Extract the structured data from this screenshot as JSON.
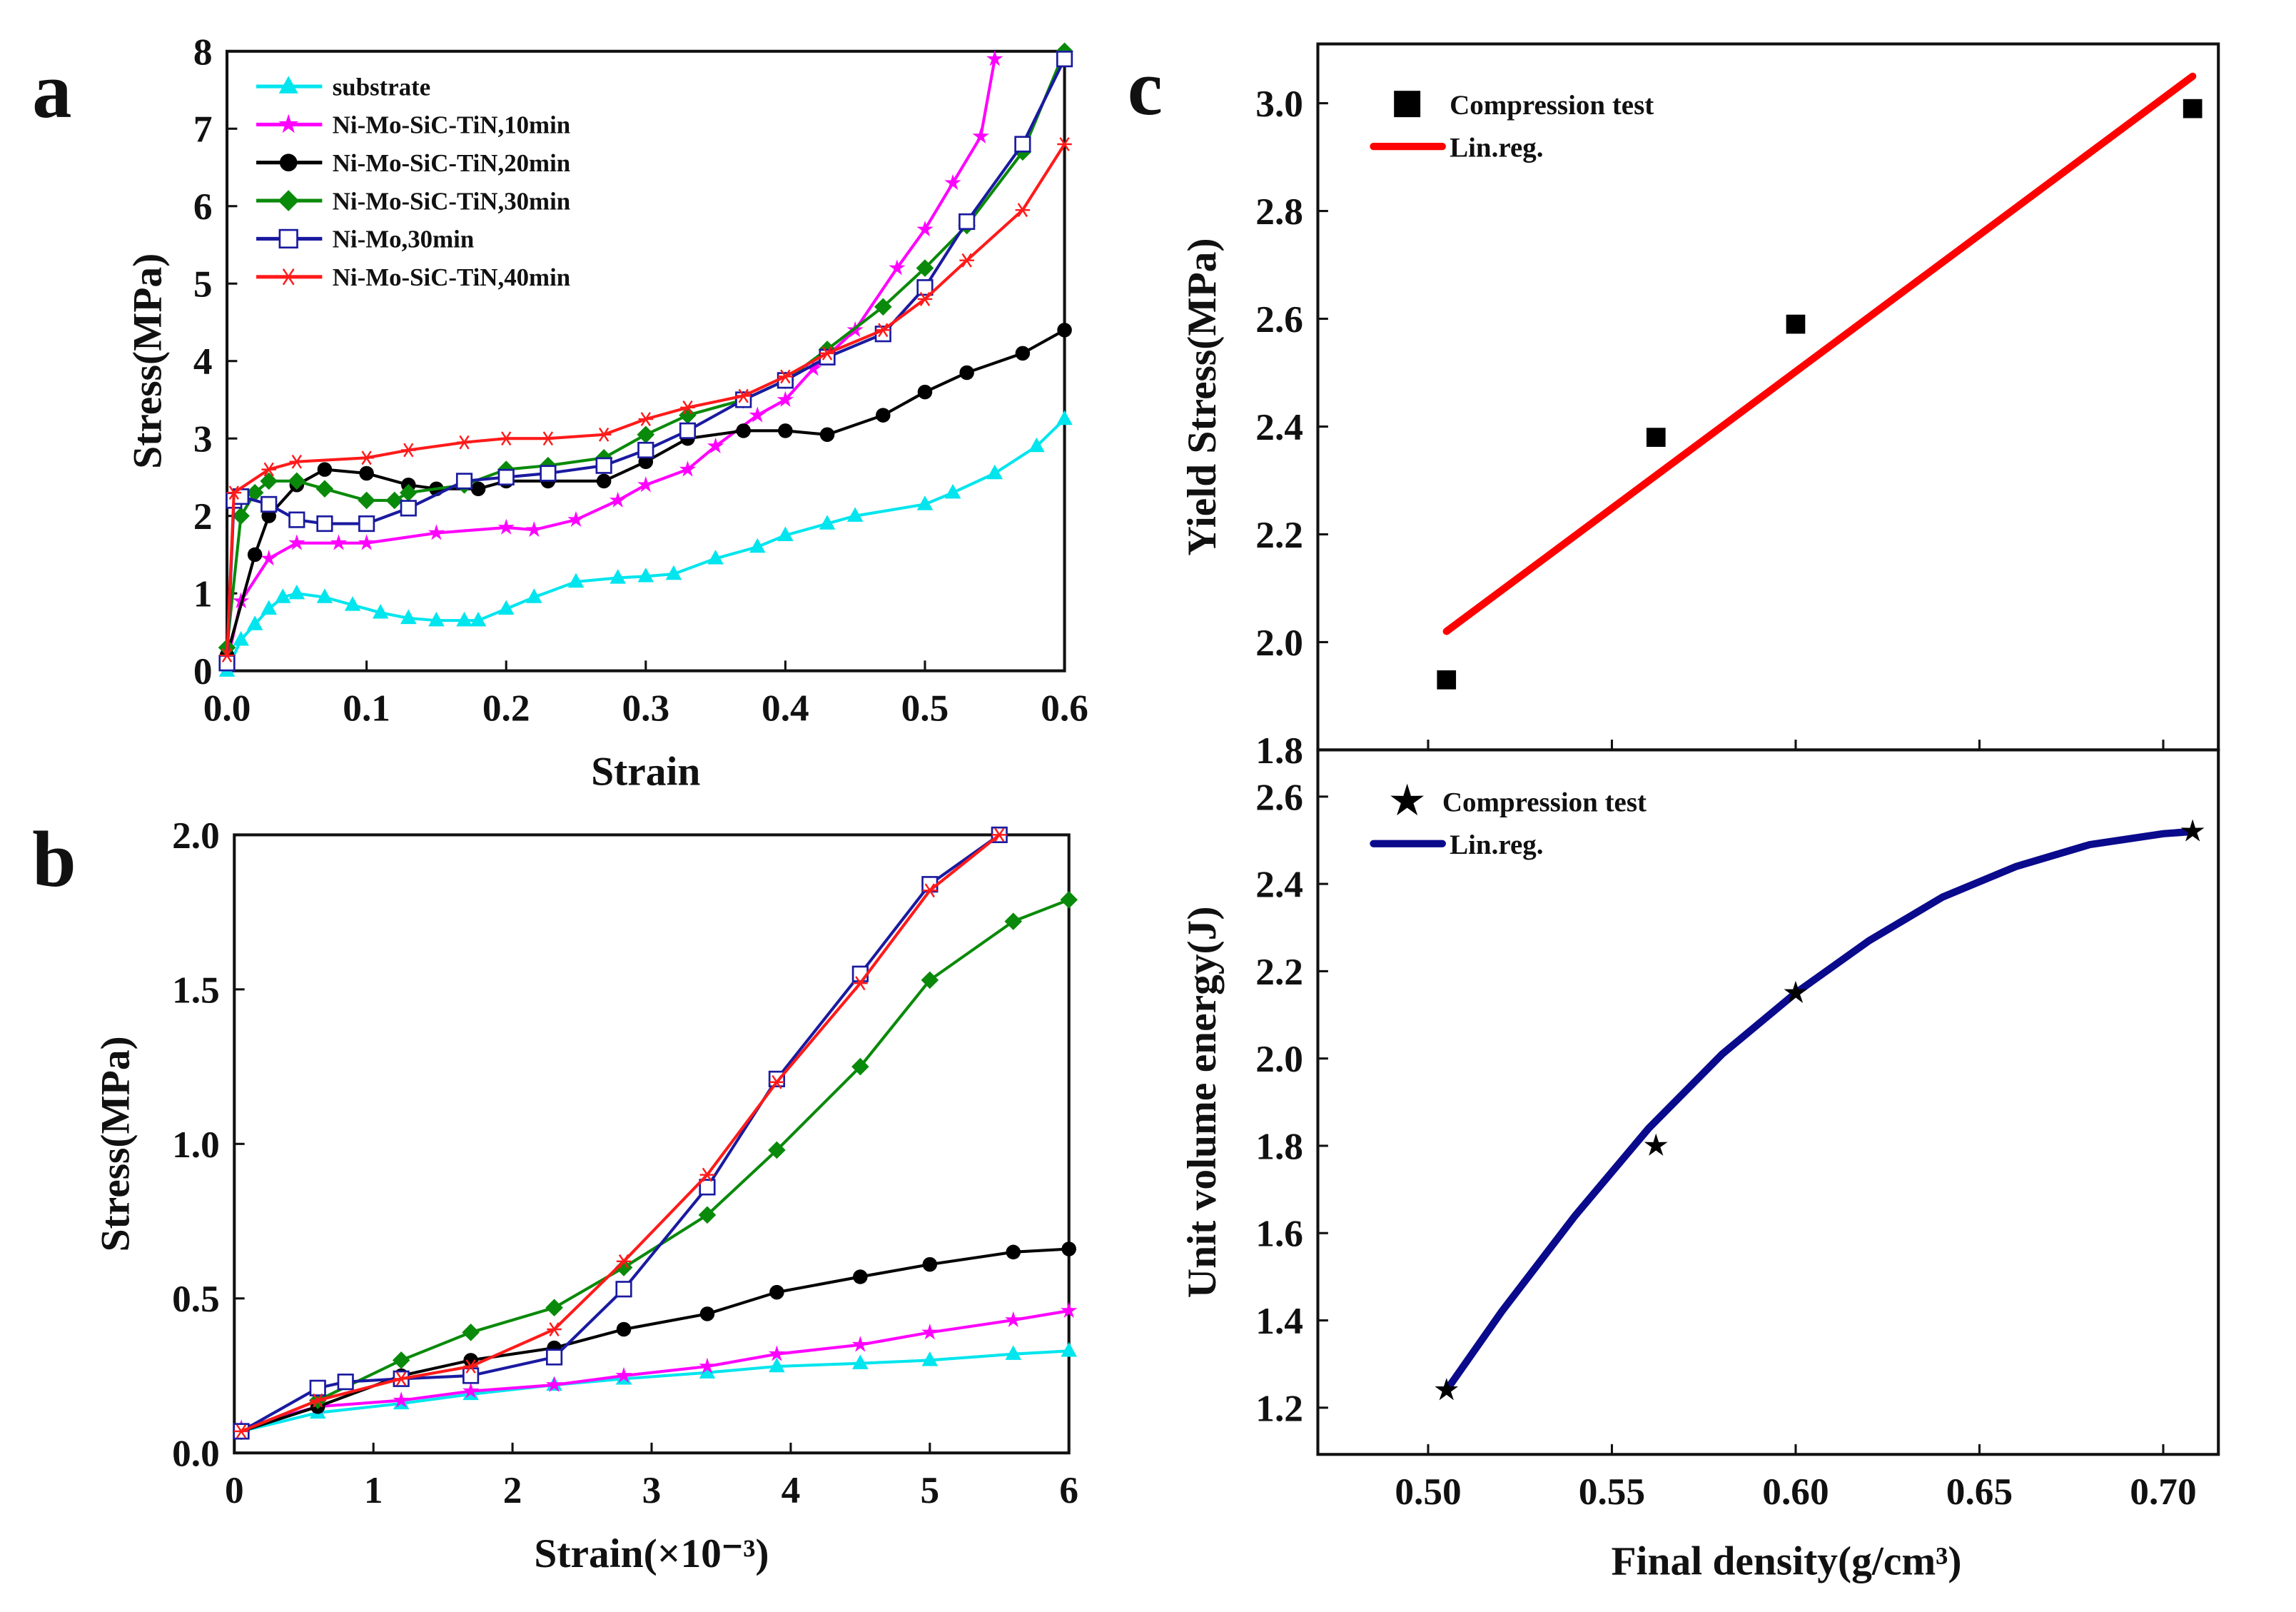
{
  "colors": {
    "substrate": "#00e5ee",
    "t10": "#ff00ff",
    "t20": "#000000",
    "t30": "#0a8a0a",
    "nimo": "#1a1aa0",
    "t40": "#ff1a1a",
    "fit_yield": "#ff0000",
    "fit_energy": "#0a0a8c"
  },
  "chart_data": [
    {
      "id": "a",
      "panel_label": "a",
      "type": "line",
      "xlabel": "Strain",
      "ylabel": "Stress(MPa)",
      "xlim": [
        0,
        0.6
      ],
      "ylim": [
        0,
        8
      ],
      "xticks": [
        0,
        0.1,
        0.2,
        0.3,
        0.4,
        0.5,
        0.6
      ],
      "xtick_labels": [
        "0.0",
        "0.1",
        "0.2",
        "0.3",
        "0.4",
        "0.5",
        "0.6"
      ],
      "yticks": [
        0,
        1,
        2,
        3,
        4,
        5,
        6,
        7,
        8
      ],
      "ytick_labels": [
        "0",
        "1",
        "2",
        "3",
        "4",
        "5",
        "6",
        "7",
        "8"
      ],
      "legend_position": "top-left",
      "series": [
        {
          "name": "substrate",
          "marker": "triangle",
          "color_key": "substrate",
          "x": [
            0,
            0.01,
            0.02,
            0.03,
            0.04,
            0.05,
            0.07,
            0.09,
            0.11,
            0.13,
            0.15,
            0.17,
            0.18,
            0.2,
            0.22,
            0.25,
            0.28,
            0.3,
            0.32,
            0.35,
            0.38,
            0.4,
            0.43,
            0.45,
            0.5,
            0.52,
            0.55,
            0.58,
            0.6
          ],
          "y": [
            0,
            0.4,
            0.6,
            0.8,
            0.95,
            1.0,
            0.95,
            0.85,
            0.75,
            0.68,
            0.65,
            0.65,
            0.65,
            0.8,
            0.95,
            1.15,
            1.2,
            1.22,
            1.25,
            1.45,
            1.6,
            1.75,
            1.9,
            2.0,
            2.15,
            2.3,
            2.55,
            2.9,
            3.25
          ]
        },
        {
          "name": "Ni-Mo-SiC-TiN,10min",
          "marker": "star",
          "color_key": "t10",
          "x": [
            0,
            0.01,
            0.03,
            0.05,
            0.08,
            0.1,
            0.15,
            0.2,
            0.22,
            0.25,
            0.28,
            0.3,
            0.33,
            0.35,
            0.38,
            0.4,
            0.42,
            0.45,
            0.48,
            0.5,
            0.52,
            0.54,
            0.55
          ],
          "y": [
            0.1,
            0.9,
            1.45,
            1.65,
            1.65,
            1.65,
            1.78,
            1.85,
            1.82,
            1.95,
            2.2,
            2.4,
            2.6,
            2.9,
            3.3,
            3.5,
            3.9,
            4.4,
            5.2,
            5.7,
            6.3,
            6.9,
            7.9
          ]
        },
        {
          "name": "Ni-Mo-SiC-TiN,20min",
          "marker": "circle",
          "color_key": "t20",
          "x": [
            0,
            0.02,
            0.03,
            0.05,
            0.07,
            0.1,
            0.13,
            0.15,
            0.18,
            0.2,
            0.23,
            0.27,
            0.3,
            0.33,
            0.37,
            0.4,
            0.43,
            0.47,
            0.5,
            0.53,
            0.57,
            0.6
          ],
          "y": [
            0.2,
            1.5,
            2.0,
            2.4,
            2.6,
            2.55,
            2.4,
            2.35,
            2.35,
            2.45,
            2.45,
            2.45,
            2.7,
            3.0,
            3.1,
            3.1,
            3.05,
            3.3,
            3.6,
            3.85,
            4.1,
            4.4
          ]
        },
        {
          "name": "Ni-Mo-SiC-TiN,30min",
          "marker": "diamond",
          "color_key": "t30",
          "x": [
            0,
            0.01,
            0.02,
            0.03,
            0.05,
            0.07,
            0.1,
            0.12,
            0.13,
            0.17,
            0.2,
            0.23,
            0.27,
            0.3,
            0.33,
            0.37,
            0.4,
            0.43,
            0.47,
            0.5,
            0.53,
            0.57,
            0.6
          ],
          "y": [
            0.3,
            2.0,
            2.3,
            2.45,
            2.45,
            2.35,
            2.2,
            2.2,
            2.3,
            2.4,
            2.6,
            2.65,
            2.75,
            3.05,
            3.3,
            3.5,
            3.75,
            4.15,
            4.7,
            5.2,
            5.75,
            6.7,
            8.0
          ]
        },
        {
          "name": "Ni-Mo,30min",
          "marker": "square-open",
          "color_key": "nimo",
          "x": [
            0,
            0.005,
            0.01,
            0.03,
            0.05,
            0.07,
            0.1,
            0.13,
            0.17,
            0.2,
            0.23,
            0.27,
            0.3,
            0.33,
            0.37,
            0.4,
            0.43,
            0.47,
            0.5,
            0.53,
            0.57,
            0.6
          ],
          "y": [
            0.1,
            2.2,
            2.25,
            2.15,
            1.95,
            1.9,
            1.9,
            2.1,
            2.45,
            2.5,
            2.55,
            2.65,
            2.85,
            3.1,
            3.5,
            3.75,
            4.05,
            4.35,
            4.95,
            5.8,
            6.8,
            7.9
          ]
        },
        {
          "name": "Ni-Mo-SiC-TiN,40min",
          "marker": "asterisk",
          "color_key": "t40",
          "x": [
            0,
            0.005,
            0.03,
            0.05,
            0.1,
            0.13,
            0.17,
            0.2,
            0.23,
            0.27,
            0.3,
            0.33,
            0.37,
            0.4,
            0.43,
            0.47,
            0.5,
            0.53,
            0.57,
            0.6
          ],
          "y": [
            0.2,
            2.3,
            2.6,
            2.7,
            2.75,
            2.85,
            2.95,
            3.0,
            3.0,
            3.05,
            3.25,
            3.4,
            3.55,
            3.8,
            4.1,
            4.4,
            4.8,
            5.3,
            5.95,
            6.8
          ]
        }
      ]
    },
    {
      "id": "b",
      "panel_label": "b",
      "type": "line",
      "xlabel": "Strain(×10⁻³)",
      "ylabel": "Stress(MPa)",
      "xlim": [
        0,
        6
      ],
      "ylim": [
        0,
        2
      ],
      "xticks": [
        0,
        1,
        2,
        3,
        4,
        5,
        6
      ],
      "xtick_labels": [
        "0",
        "1",
        "2",
        "3",
        "4",
        "5",
        "6"
      ],
      "yticks": [
        0,
        0.5,
        1,
        1.5,
        2
      ],
      "ytick_labels": [
        "0.0",
        "0.5",
        "1.0",
        "1.5",
        "2.0"
      ],
      "series": [
        {
          "name": "substrate",
          "marker": "triangle",
          "color_key": "substrate",
          "x": [
            0.05,
            0.6,
            1.2,
            1.7,
            2.3,
            2.8,
            3.4,
            3.9,
            4.5,
            5.0,
            5.6,
            6.0
          ],
          "y": [
            0.07,
            0.13,
            0.16,
            0.19,
            0.22,
            0.24,
            0.26,
            0.28,
            0.29,
            0.3,
            0.32,
            0.33
          ]
        },
        {
          "name": "Ni-Mo-SiC-TiN,10min",
          "marker": "star",
          "color_key": "t10",
          "x": [
            0.05,
            0.6,
            1.2,
            1.7,
            2.3,
            2.8,
            3.4,
            3.9,
            4.5,
            5.0,
            5.6,
            6.0
          ],
          "y": [
            0.08,
            0.15,
            0.17,
            0.2,
            0.22,
            0.25,
            0.28,
            0.32,
            0.35,
            0.39,
            0.43,
            0.46
          ]
        },
        {
          "name": "Ni-Mo-SiC-TiN,20min",
          "marker": "circle",
          "color_key": "t20",
          "x": [
            0.05,
            0.6,
            1.2,
            1.7,
            2.3,
            2.8,
            3.4,
            3.9,
            4.5,
            5.0,
            5.6,
            6.0
          ],
          "y": [
            0.07,
            0.15,
            0.25,
            0.3,
            0.34,
            0.4,
            0.45,
            0.52,
            0.57,
            0.61,
            0.65,
            0.66
          ]
        },
        {
          "name": "Ni-Mo-SiC-TiN,30min",
          "marker": "diamond",
          "color_key": "t30",
          "x": [
            0.05,
            0.6,
            1.2,
            1.7,
            2.3,
            2.8,
            3.4,
            3.9,
            4.5,
            5.0,
            5.6,
            6.0
          ],
          "y": [
            0.07,
            0.17,
            0.3,
            0.39,
            0.47,
            0.6,
            0.77,
            0.98,
            1.25,
            1.53,
            1.72,
            1.79
          ]
        },
        {
          "name": "Ni-Mo,30min",
          "marker": "square-open",
          "color_key": "nimo",
          "x": [
            0.05,
            0.6,
            0.8,
            1.2,
            1.7,
            2.3,
            2.8,
            3.4,
            3.9,
            4.5,
            5.0,
            5.5
          ],
          "y": [
            0.07,
            0.21,
            0.23,
            0.24,
            0.25,
            0.31,
            0.53,
            0.86,
            1.21,
            1.55,
            1.84,
            2.0
          ]
        },
        {
          "name": "Ni-Mo-SiC-TiN,40min",
          "marker": "asterisk",
          "color_key": "t40",
          "x": [
            0.05,
            0.6,
            1.2,
            1.7,
            2.3,
            2.8,
            3.4,
            3.9,
            4.5,
            5.0,
            5.5
          ],
          "y": [
            0.07,
            0.17,
            0.24,
            0.28,
            0.4,
            0.62,
            0.9,
            1.2,
            1.52,
            1.82,
            2.0
          ]
        }
      ]
    },
    {
      "id": "c_top",
      "panel_label": "c",
      "type": "scatter",
      "xlabel": "",
      "ylabel": "Yield Stress(MPa)",
      "xlim": [
        0.47,
        0.715
      ],
      "ylim": [
        1.8,
        3.11
      ],
      "xticks": [
        0.5,
        0.55,
        0.6,
        0.65,
        0.7
      ],
      "xtick_labels": [],
      "yticks": [
        1.8,
        2.0,
        2.2,
        2.4,
        2.6,
        2.8,
        3.0
      ],
      "ytick_labels": [
        "1.8",
        "2.0",
        "2.2",
        "2.4",
        "2.6",
        "2.8",
        "3.0"
      ],
      "legend_position": "top-left",
      "points": {
        "name": "Compression test",
        "marker": "square",
        "x": [
          0.505,
          0.562,
          0.6,
          0.708
        ],
        "y": [
          1.93,
          2.38,
          2.59,
          2.99
        ]
      },
      "fit": {
        "name": "Lin.reg.",
        "color_key": "fit_yield",
        "x": [
          0.505,
          0.708
        ],
        "y": [
          2.02,
          3.05
        ]
      }
    },
    {
      "id": "c_bottom",
      "panel_label": "",
      "type": "scatter",
      "xlabel": "Final density(g/cm³)",
      "ylabel": "Unit volume energy(J)",
      "xlim": [
        0.47,
        0.715
      ],
      "ylim": [
        1.093,
        2.707
      ],
      "xticks": [
        0.5,
        0.55,
        0.6,
        0.65,
        0.7
      ],
      "xtick_labels": [
        "0.50",
        "0.55",
        "0.60",
        "0.65",
        "0.70"
      ],
      "yticks": [
        1.2,
        1.4,
        1.6,
        1.8,
        2.0,
        2.2,
        2.4,
        2.6
      ],
      "ytick_labels": [
        "1.2",
        "1.4",
        "1.6",
        "1.8",
        "2.0",
        "2.2",
        "2.4",
        "2.6"
      ],
      "legend_position": "top-left",
      "points": {
        "name": "Compression test",
        "marker": "star",
        "x": [
          0.505,
          0.562,
          0.6,
          0.708
        ],
        "y": [
          1.24,
          1.8,
          2.15,
          2.52
        ]
      },
      "fit": {
        "name": "Lin.reg.",
        "color_key": "fit_energy",
        "x": [
          0.505,
          0.52,
          0.54,
          0.56,
          0.58,
          0.6,
          0.62,
          0.64,
          0.66,
          0.68,
          0.7,
          0.708
        ],
        "y": [
          1.24,
          1.42,
          1.64,
          1.84,
          2.01,
          2.15,
          2.27,
          2.37,
          2.44,
          2.49,
          2.515,
          2.52
        ]
      }
    }
  ]
}
